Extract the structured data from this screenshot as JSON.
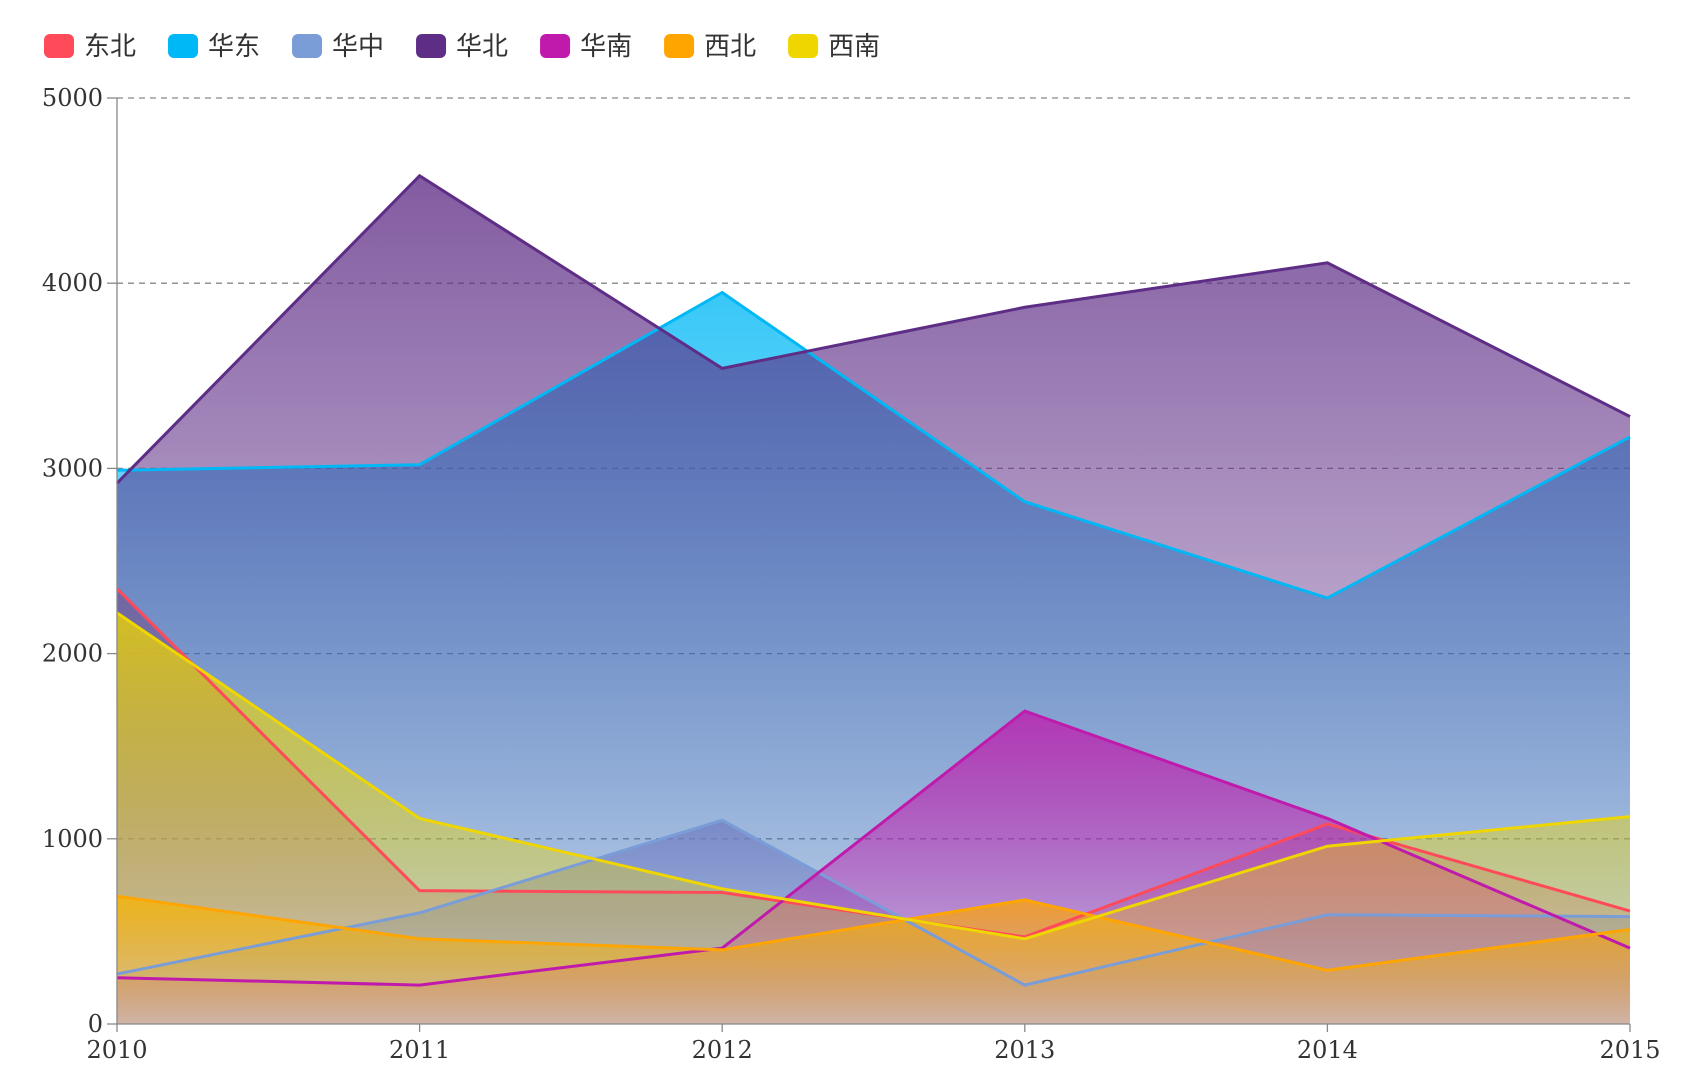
{
  "chart_data": {
    "type": "area",
    "title": "",
    "xlabel": "",
    "ylabel": "",
    "categories": [
      "2010",
      "2011",
      "2012",
      "2013",
      "2014",
      "2015"
    ],
    "ylim": [
      0,
      5000
    ],
    "yticks": [
      "0",
      "1000",
      "2000",
      "3000",
      "4000",
      "5000"
    ],
    "grid": "horizontal dashed",
    "legend_position": "top-left",
    "series": [
      {
        "name": "东北",
        "color": "#ff4a5a",
        "values": [
          2350,
          720,
          710,
          470,
          1080,
          610
        ]
      },
      {
        "name": "华东",
        "color": "#00b8f5",
        "values": [
          2990,
          3020,
          3950,
          2820,
          2300,
          3170
        ]
      },
      {
        "name": "华中",
        "color": "#7a9dd8",
        "values": [
          270,
          600,
          1100,
          210,
          590,
          580
        ]
      },
      {
        "name": "华北",
        "color": "#5e2d86",
        "values": [
          2920,
          4580,
          3540,
          3870,
          4110,
          3280
        ]
      },
      {
        "name": "华南",
        "color": "#c01aac",
        "values": [
          250,
          210,
          410,
          1690,
          1110,
          410
        ]
      },
      {
        "name": "西北",
        "color": "#ffa500",
        "values": [
          690,
          460,
          400,
          670,
          290,
          510
        ]
      },
      {
        "name": "西南",
        "color": "#efd600",
        "values": [
          2220,
          1110,
          730,
          460,
          960,
          1120
        ]
      }
    ]
  }
}
